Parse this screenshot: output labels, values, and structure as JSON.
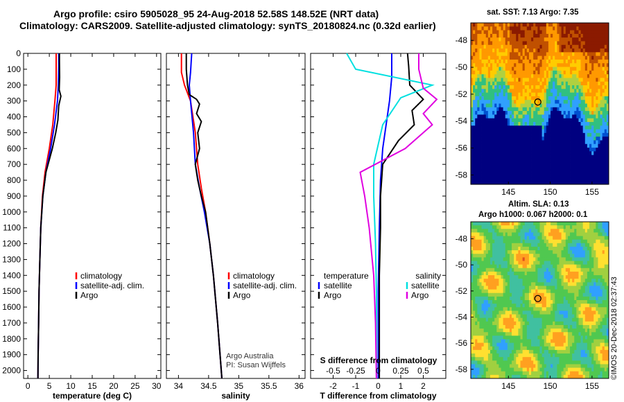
{
  "header": {
    "title_line1": "Argo profile: csiro 5905028_95 24-Aug-2018 52.58S 148.52E (NRT data)",
    "title_line2": "Climatology: CARS2009. Satellite-adjusted climatology: synTS_20180824.nc (0.32d earlier)"
  },
  "chart_data": [
    {
      "type": "line",
      "panel": "temperature",
      "xlabel": "temperature (deg C)",
      "ylabel": "",
      "xlim": [
        -1,
        31
      ],
      "ylim": [
        2050,
        0
      ],
      "xticks": [
        "0",
        "5",
        "10",
        "15",
        "20",
        "25",
        "30"
      ],
      "yticks": [
        "0",
        "100",
        "200",
        "300",
        "400",
        "500",
        "600",
        "700",
        "800",
        "900",
        "1000",
        "1100",
        "1200",
        "1300",
        "1400",
        "1500",
        "1600",
        "1700",
        "1800",
        "1900",
        "2000"
      ],
      "legend": [
        "climatology",
        "satellite-adj. clim.",
        "Argo"
      ],
      "legend_placement": "bottom-right",
      "series": [
        {
          "name": "climatology",
          "color": "#ff0000",
          "points": [
            [
              6.6,
              0
            ],
            [
              6.6,
              80
            ],
            [
              6.6,
              200
            ],
            [
              6.3,
              300
            ],
            [
              5.8,
              450
            ],
            [
              5.0,
              600
            ],
            [
              4.0,
              750
            ],
            [
              3.4,
              900
            ],
            [
              3.0,
              1100
            ],
            [
              2.8,
              1300
            ],
            [
              2.6,
              1500
            ],
            [
              2.5,
              1700
            ],
            [
              2.4,
              1900
            ],
            [
              2.35,
              2050
            ]
          ]
        },
        {
          "name": "satellite-adj. clim.",
          "color": "#0000ff",
          "points": [
            [
              7.2,
              0
            ],
            [
              7.2,
              80
            ],
            [
              7.1,
              200
            ],
            [
              6.9,
              300
            ],
            [
              6.2,
              450
            ],
            [
              5.3,
              600
            ],
            [
              4.2,
              750
            ],
            [
              3.5,
              900
            ],
            [
              3.0,
              1100
            ],
            [
              2.8,
              1300
            ],
            [
              2.6,
              1500
            ],
            [
              2.5,
              1700
            ],
            [
              2.4,
              1900
            ],
            [
              2.35,
              2050
            ]
          ]
        },
        {
          "name": "Argo",
          "color": "#000000",
          "points": [
            [
              7.35,
              0
            ],
            [
              7.35,
              50
            ],
            [
              7.4,
              150
            ],
            [
              7.3,
              230
            ],
            [
              7.7,
              270
            ],
            [
              7.2,
              330
            ],
            [
              7.0,
              420
            ],
            [
              6.5,
              500
            ],
            [
              5.7,
              600
            ],
            [
              4.2,
              750
            ],
            [
              3.5,
              900
            ],
            [
              3.0,
              1100
            ],
            [
              2.8,
              1300
            ],
            [
              2.6,
              1500
            ],
            [
              2.5,
              1700
            ],
            [
              2.4,
              1900
            ],
            [
              2.35,
              2050
            ]
          ]
        }
      ]
    },
    {
      "type": "line",
      "panel": "salinity",
      "xlabel": "salinity",
      "ylabel": "",
      "xlim": [
        33.8,
        36.1
      ],
      "ylim": [
        2050,
        0
      ],
      "xticks": [
        "34",
        "34.5",
        "35",
        "35.5",
        "36"
      ],
      "legend": [
        "climatology",
        "satellite-adj. clim.",
        "Argo"
      ],
      "legend_placement": "bottom-right",
      "annotations": [
        "Argo Australia",
        "PI: Susan Wijffels"
      ],
      "series": [
        {
          "name": "climatology",
          "color": "#ff0000",
          "points": [
            [
              34.05,
              0
            ],
            [
              34.05,
              120
            ],
            [
              34.1,
              200
            ],
            [
              34.2,
              300
            ],
            [
              34.28,
              500
            ],
            [
              34.32,
              700
            ],
            [
              34.38,
              850
            ],
            [
              34.45,
              1000
            ],
            [
              34.52,
              1200
            ],
            [
              34.58,
              1400
            ],
            [
              34.65,
              1700
            ],
            [
              34.72,
              2050
            ]
          ]
        },
        {
          "name": "satellite-adj. clim.",
          "color": "#0000ff",
          "points": [
            [
              34.22,
              0
            ],
            [
              34.2,
              120
            ],
            [
              34.18,
              200
            ],
            [
              34.2,
              300
            ],
            [
              34.25,
              500
            ],
            [
              34.28,
              700
            ],
            [
              34.35,
              850
            ],
            [
              34.43,
              1000
            ],
            [
              34.52,
              1200
            ],
            [
              34.58,
              1400
            ],
            [
              34.65,
              1700
            ],
            [
              34.72,
              2050
            ]
          ]
        },
        {
          "name": "Argo",
          "color": "#000000",
          "points": [
            [
              34.13,
              0
            ],
            [
              34.13,
              100
            ],
            [
              34.15,
              200
            ],
            [
              34.18,
              260
            ],
            [
              34.3,
              290
            ],
            [
              34.35,
              320
            ],
            [
              34.3,
              380
            ],
            [
              34.38,
              430
            ],
            [
              34.32,
              500
            ],
            [
              34.35,
              600
            ],
            [
              34.28,
              700
            ],
            [
              34.32,
              800
            ],
            [
              34.38,
              900
            ],
            [
              34.45,
              1000
            ],
            [
              34.52,
              1200
            ],
            [
              34.58,
              1400
            ],
            [
              34.65,
              1700
            ],
            [
              34.72,
              2050
            ]
          ]
        }
      ]
    },
    {
      "type": "line",
      "panel": "difference",
      "xlabel": "T difference from climatology",
      "xlabel_top": "S difference from climatology",
      "ylabel": "",
      "xlim": [
        -3,
        3
      ],
      "ylim": [
        2050,
        0
      ],
      "xticks": [
        "-2",
        "-1",
        "0",
        "1",
        "2"
      ],
      "xticks_top": [
        "-0.5",
        "-0.25",
        "0",
        "0.25",
        "0.5"
      ],
      "legend_left": [
        "temperature",
        "satellite",
        "Argo"
      ],
      "legend_right": [
        "salinity",
        "satellite",
        "Argo"
      ],
      "legend_placement": "bottom",
      "series": [
        {
          "name": "satellite",
          "quantity": "temperature",
          "color": "#0000ff",
          "points": [
            [
              0.6,
              0
            ],
            [
              0.6,
              150
            ],
            [
              0.5,
              300
            ],
            [
              0.35,
              450
            ],
            [
              0.2,
              600
            ],
            [
              0.1,
              800
            ],
            [
              0.05,
              1100
            ],
            [
              0.0,
              1500
            ],
            [
              0.0,
              2050
            ]
          ]
        },
        {
          "name": "Argo",
          "quantity": "temperature",
          "color": "#000000",
          "points": [
            [
              1.3,
              0
            ],
            [
              1.35,
              80
            ],
            [
              1.4,
              200
            ],
            [
              2.0,
              290
            ],
            [
              1.5,
              360
            ],
            [
              1.6,
              450
            ],
            [
              0.9,
              550
            ],
            [
              0.2,
              700
            ],
            [
              0.1,
              900
            ],
            [
              0.1,
              1100
            ],
            [
              0.05,
              1400
            ],
            [
              0.05,
              1700
            ],
            [
              0.05,
              2050
            ]
          ]
        },
        {
          "name": "satellite",
          "quantity": "salinity",
          "color": "#00e0e0",
          "points": [
            [
              -0.35,
              0
            ],
            [
              -0.25,
              100
            ],
            [
              0.6,
              200
            ],
            [
              0.25,
              280
            ],
            [
              0.05,
              450
            ],
            [
              -0.05,
              700
            ],
            [
              -0.05,
              900
            ],
            [
              -0.03,
              1200
            ],
            [
              -0.02,
              1500
            ],
            [
              -0.02,
              2050
            ]
          ]
        },
        {
          "name": "Argo",
          "quantity": "salinity",
          "color": "#e000e0",
          "points": [
            [
              0.45,
              0
            ],
            [
              0.45,
              100
            ],
            [
              0.5,
              220
            ],
            [
              0.65,
              290
            ],
            [
              0.5,
              380
            ],
            [
              0.6,
              450
            ],
            [
              0.3,
              600
            ],
            [
              -0.2,
              750
            ],
            [
              -0.15,
              900
            ],
            [
              -0.1,
              1100
            ],
            [
              -0.05,
              1400
            ],
            [
              -0.03,
              1700
            ],
            [
              -0.02,
              2050
            ]
          ]
        }
      ]
    },
    {
      "type": "heatmap",
      "panel": "sst_map",
      "title": "sat. SST: 7.13  Argo: 7.35",
      "xlim": [
        140.5,
        157
      ],
      "ylim": [
        -58.7,
        -46.7
      ],
      "xticks": [
        "145",
        "150",
        "155"
      ],
      "yticks": [
        "-48",
        "-50",
        "-52",
        "-54",
        "-56",
        "-58"
      ],
      "marker": {
        "lon": 148.52,
        "lat": -52.58
      },
      "colormap": [
        "#000080",
        "#0050d0",
        "#30a0ff",
        "#30c080",
        "#b0d040",
        "#ffcc00",
        "#ff9900",
        "#c05000",
        "#8b1a00"
      ]
    },
    {
      "type": "heatmap",
      "panel": "sla_map",
      "title_line1": "Altim. SLA: 0.13",
      "title_line2": "Argo h1000: 0.067 h2000: 0.1",
      "xlim": [
        140.5,
        157
      ],
      "ylim": [
        -58.7,
        -46.7
      ],
      "xticks": [
        "145",
        "150",
        "155"
      ],
      "yticks": [
        "-48",
        "-50",
        "-52",
        "-54",
        "-56",
        "-58"
      ],
      "marker": {
        "lon": 148.52,
        "lat": -52.58
      },
      "colormap": [
        "#30a0ff",
        "#40c0a0",
        "#50c850",
        "#a0d040",
        "#ffe030",
        "#ffa020",
        "#e05020"
      ]
    }
  ],
  "footer": {
    "credit": "©IMOS 20-Dec-2018 02:37:43"
  }
}
